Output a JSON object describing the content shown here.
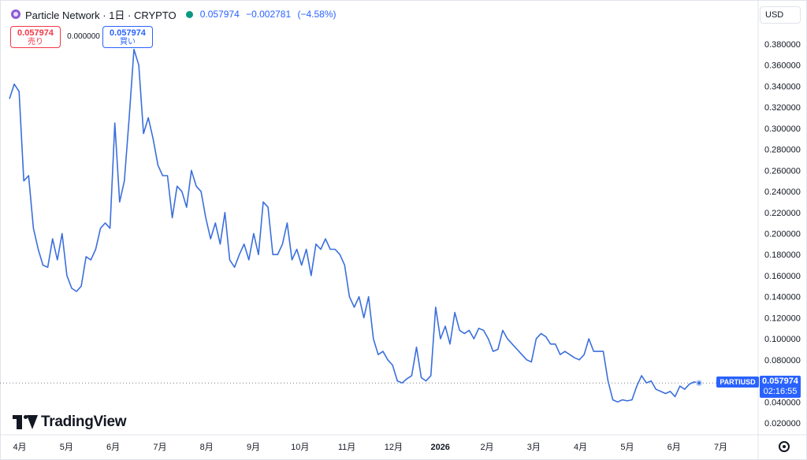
{
  "header": {
    "title": "Particle Network · 1日 · CRYPTO",
    "last": "0.057974",
    "change": "−0.002781",
    "change_pct": "(−4.58%)"
  },
  "trade": {
    "sell_price": "0.057974",
    "sell_label": "売り",
    "spread": "0.000000",
    "buy_price": "0.057974",
    "buy_label": "買い"
  },
  "currency": "USD",
  "symbol_label": "PARTIUSD",
  "last_price": "0.057974",
  "countdown": "02:16:55",
  "logo_text": "TradingView",
  "colors": {
    "line": "#3a6fdc",
    "accent": "#2962ff",
    "sell": "#f23645",
    "market_dot": "#089981"
  },
  "icons": {
    "symbol": "particle-network-icon",
    "settings": "gear-icon",
    "brand": "tradingview-logo"
  },
  "chart_data": {
    "type": "line",
    "title": "",
    "xlabel": "",
    "ylabel": "",
    "ylim": [
      0.0,
      0.4
    ],
    "y_ticks": [
      "0.020000",
      "0.040000",
      "0.060000",
      "0.080000",
      "0.100000",
      "0.120000",
      "0.140000",
      "0.160000",
      "0.180000",
      "0.200000",
      "0.220000",
      "0.240000",
      "0.260000",
      "0.280000",
      "0.300000",
      "0.320000",
      "0.340000",
      "0.360000",
      "0.380000"
    ],
    "y_tick_values": [
      0.02,
      0.04,
      0.06,
      0.08,
      0.1,
      0.12,
      0.14,
      0.16,
      0.18,
      0.2,
      0.22,
      0.24,
      0.26,
      0.28,
      0.3,
      0.32,
      0.34,
      0.36,
      0.38
    ],
    "x_ticks": [
      "4月",
      "5月",
      "6月",
      "7月",
      "8月",
      "9月",
      "10月",
      "11月",
      "12月",
      "2026",
      "2月",
      "3月",
      "4月",
      "5月",
      "6月",
      "7月"
    ],
    "grid": false,
    "series": [
      {
        "values": [
          0.328,
          0.342,
          0.335,
          0.25,
          0.255,
          0.205,
          0.185,
          0.17,
          0.168,
          0.195,
          0.175,
          0.2,
          0.16,
          0.148,
          0.145,
          0.15,
          0.178,
          0.175,
          0.185,
          0.205,
          0.21,
          0.205,
          0.305,
          0.23,
          0.25,
          0.31,
          0.375,
          0.36,
          0.295,
          0.31,
          0.29,
          0.265,
          0.255,
          0.255,
          0.215,
          0.245,
          0.24,
          0.225,
          0.26,
          0.245,
          0.24,
          0.215,
          0.195,
          0.21,
          0.19,
          0.22,
          0.175,
          0.168,
          0.18,
          0.19,
          0.175,
          0.2,
          0.18,
          0.23,
          0.225,
          0.18,
          0.18,
          0.19,
          0.21,
          0.175,
          0.185,
          0.17,
          0.185,
          0.16,
          0.19,
          0.185,
          0.195,
          0.185,
          0.185,
          0.18,
          0.17,
          0.14,
          0.13,
          0.14,
          0.12,
          0.14,
          0.1,
          0.085,
          0.088,
          0.08,
          0.075,
          0.06,
          0.058,
          0.062,
          0.065,
          0.092,
          0.063,
          0.06,
          0.065,
          0.13,
          0.1,
          0.112,
          0.095,
          0.125,
          0.108,
          0.105,
          0.108,
          0.1,
          0.11,
          0.108,
          0.1,
          0.088,
          0.09,
          0.108,
          0.1,
          0.095,
          0.09,
          0.085,
          0.08,
          0.078,
          0.1,
          0.105,
          0.102,
          0.095,
          0.095,
          0.085,
          0.088,
          0.085,
          0.082,
          0.08,
          0.085,
          0.1,
          0.088,
          0.088,
          0.088,
          0.06,
          0.042,
          0.04,
          0.042,
          0.041,
          0.042,
          0.055,
          0.065,
          0.058,
          0.06,
          0.052,
          0.05,
          0.048,
          0.05,
          0.045,
          0.055,
          0.052,
          0.057,
          0.059,
          0.057974
        ]
      }
    ]
  }
}
